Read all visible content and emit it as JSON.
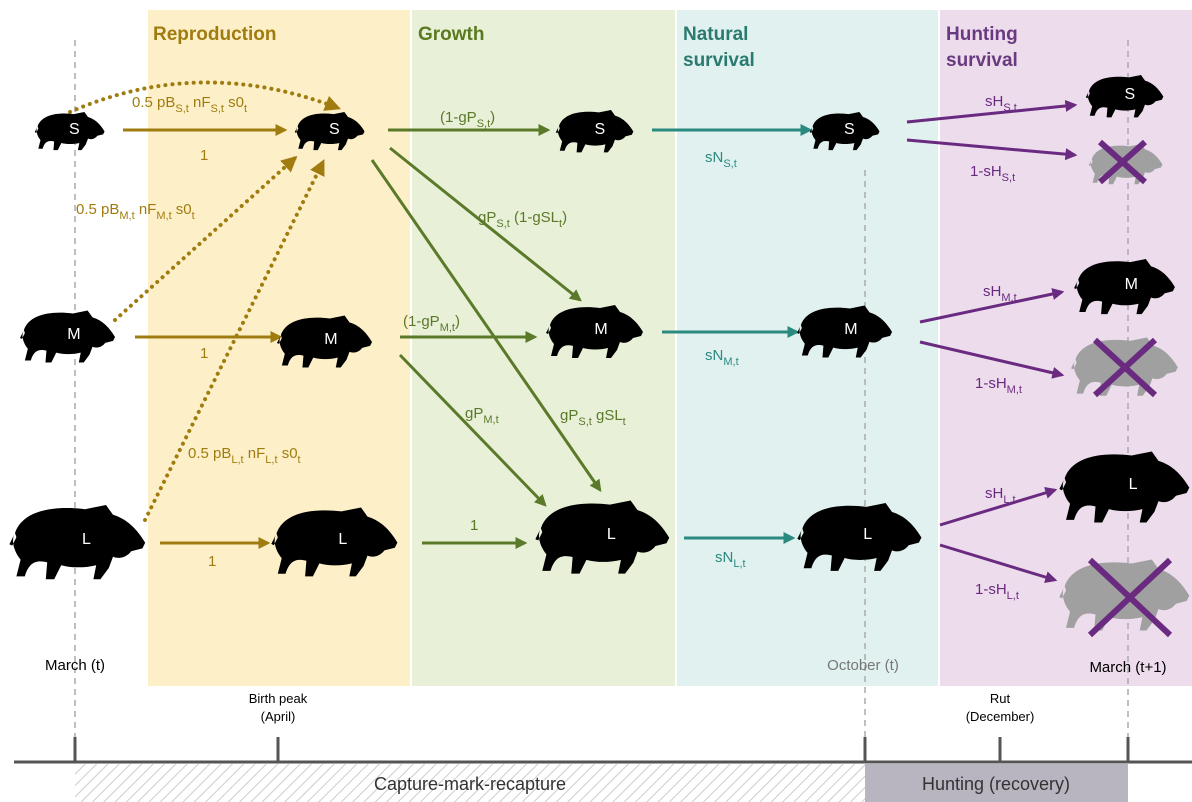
{
  "stages": [
    {
      "title": [
        "Reproduction"
      ]
    },
    {
      "title": [
        "Growth"
      ]
    },
    {
      "title": [
        "Natural",
        "survival"
      ]
    },
    {
      "title": [
        "Hunting",
        "survival"
      ]
    }
  ],
  "nodes": [
    {
      "label": "S"
    },
    {
      "label": "M"
    },
    {
      "label": "L"
    },
    {
      "label": "S"
    },
    {
      "label": "M"
    },
    {
      "label": "L"
    },
    {
      "label": "S"
    },
    {
      "label": "M"
    },
    {
      "label": "L"
    },
    {
      "label": "S"
    },
    {
      "label": "M"
    },
    {
      "label": "L"
    },
    {
      "label": "S"
    },
    {
      "label": "M"
    },
    {
      "label": "L"
    }
  ],
  "edges": [
    {
      "label": [
        "0.5 pB",
        "S,t",
        " nF",
        "S,t",
        " s0",
        "t"
      ]
    },
    {
      "label": [
        "1"
      ]
    },
    {
      "label": [
        "0.5 pB",
        "M,t",
        " nF",
        "M,t",
        " s0",
        "t"
      ]
    },
    {
      "label": [
        "1"
      ]
    },
    {
      "label": [
        "0.5 pB",
        "L,t",
        " nF",
        "L,t",
        " s0",
        "t"
      ]
    },
    {
      "label": [
        "1"
      ]
    },
    {
      "label": [
        "(1-gP",
        "S,t",
        ")"
      ]
    },
    {
      "label": [
        "gP",
        "S,t",
        " (1-gSL",
        "t",
        ")"
      ]
    },
    {
      "label": [
        "gP",
        "S,t",
        " gSL",
        "t"
      ]
    },
    {
      "label": [
        "(1-gP",
        "M,t",
        ")"
      ]
    },
    {
      "label": [
        "gP",
        "M,t"
      ]
    },
    {
      "label": [
        "1"
      ]
    },
    {
      "label": [
        "sN",
        "S,t"
      ]
    },
    {
      "label": [
        "sN",
        "M,t"
      ]
    },
    {
      "label": [
        "sN",
        "L,t"
      ]
    },
    {
      "label": [
        "sH",
        "S,t"
      ]
    },
    {
      "label": [
        "1-sH",
        "S,t"
      ]
    },
    {
      "label": [
        "sH",
        "M,t"
      ]
    },
    {
      "label": [
        "1-sH",
        "M,t"
      ]
    },
    {
      "label": [
        "sH",
        "L,t"
      ]
    },
    {
      "label": [
        "1-sH",
        "L,t"
      ]
    }
  ],
  "time_labels": [
    "March (t)",
    "October  (t)",
    "March (t+1)"
  ],
  "events": [
    {
      "lines": [
        "Birth peak",
        "(April)"
      ]
    },
    {
      "lines": [
        "Rut",
        "(December)"
      ]
    }
  ],
  "periods": [
    "Capture-mark-recapture",
    "Hunting (recovery)"
  ]
}
